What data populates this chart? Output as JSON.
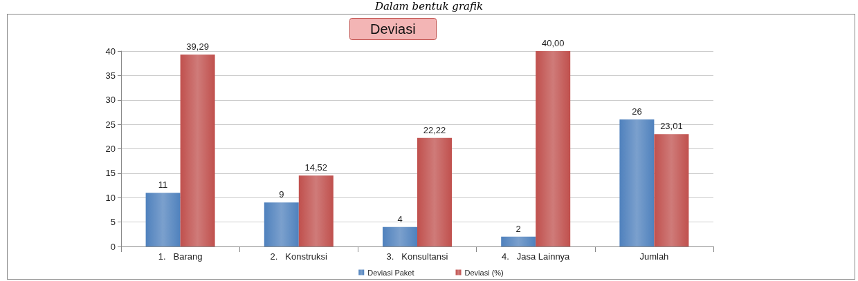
{
  "chart_data": {
    "type": "bar",
    "title": "Deviasi",
    "annotations": [
      "Dalam bentuk grafik"
    ],
    "categories": [
      "1.   Barang",
      "2.   Konstruksi",
      "3.   Konsultansi",
      "4.   Jasa Lainnya",
      "Jumlah"
    ],
    "series": [
      {
        "name": "Deviasi Paket",
        "color": "#4f81bd",
        "values": [
          11,
          9,
          4,
          2,
          26
        ],
        "value_labels": [
          "11",
          "9",
          "4",
          "2",
          "26"
        ]
      },
      {
        "name": "Deviasi (%)",
        "color": "#c0504d",
        "values": [
          39.29,
          14.52,
          22.22,
          40.0,
          23.01
        ],
        "value_labels": [
          "39,29",
          "14,52",
          "22,22",
          "40,00",
          "23,01"
        ]
      }
    ],
    "ylim": [
      0,
      40
    ],
    "yticks": [
      0,
      5,
      10,
      15,
      20,
      25,
      30,
      35,
      40
    ],
    "grid": "y",
    "legend": "bottom"
  }
}
